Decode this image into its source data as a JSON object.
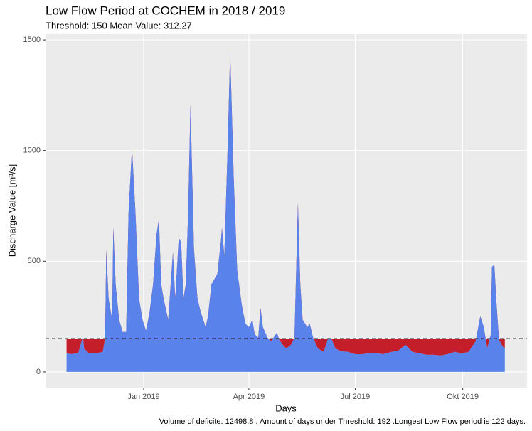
{
  "chart_data": {
    "type": "area",
    "title": "Low Flow Period at COCHEM in 2018 / 2019",
    "subtitle": "Threshold: 150  Mean Value: 312.27",
    "x_label": "Days",
    "y_label": "Discharge Value [m³/s]",
    "caption": "Volume of deficite:  12498.8 . Amount of days under Threshold: 192 .Longest Low Flow period is 122 days.",
    "threshold": 150,
    "color": "#5982ea",
    "deficit_color": "#c41e2a",
    "grid": true,
    "xlim": [
      -84,
      328
    ],
    "xticks": [
      {
        "value": 0,
        "label": "Jan 2019"
      },
      {
        "value": 90,
        "label": "Apr 2019"
      },
      {
        "value": 181,
        "label": "Jul 2019"
      },
      {
        "value": 273,
        "label": "Okt 2019"
      }
    ],
    "ylim": [
      -71,
      1526
    ],
    "yticks": [
      0,
      500,
      1000,
      1500
    ],
    "x": [
      -66,
      -62,
      -56,
      -52,
      -51,
      -47,
      -41,
      -35,
      -33,
      -32,
      -30,
      -27,
      -26,
      -24,
      -21,
      -18,
      -15,
      -13,
      -10,
      -7,
      -4,
      -1,
      2,
      5,
      8,
      11,
      13,
      15,
      17,
      21,
      25,
      27,
      30,
      32,
      34,
      36,
      38,
      40,
      43,
      46,
      49,
      53,
      55,
      58,
      63,
      66,
      67,
      69,
      72,
      74,
      77,
      80,
      84,
      87,
      90,
      93,
      95,
      98,
      100,
      102,
      106,
      109,
      114,
      116,
      119,
      122,
      126,
      129,
      132,
      134,
      136,
      140,
      142,
      145,
      149,
      154,
      158,
      161,
      164,
      169,
      175,
      181,
      187,
      193,
      199,
      205,
      212,
      218,
      224,
      230,
      236,
      242,
      248,
      254,
      260,
      266,
      272,
      278,
      284,
      288,
      291,
      294,
      297,
      298,
      300,
      302,
      304,
      307,
      309
    ],
    "values": [
      84,
      80,
      84,
      161,
      106,
      84,
      84,
      90,
      154,
      549,
      331,
      235,
      652,
      395,
      235,
      180,
      180,
      716,
      1012,
      716,
      331,
      235,
      186,
      267,
      395,
      620,
      691,
      395,
      331,
      235,
      540,
      331,
      604,
      588,
      331,
      395,
      716,
      1205,
      556,
      331,
      267,
      202,
      251,
      395,
      443,
      588,
      652,
      524,
      1038,
      1446,
      877,
      459,
      299,
      218,
      202,
      235,
      170,
      154,
      289,
      202,
      154,
      138,
      177,
      145,
      122,
      106,
      122,
      154,
      765,
      395,
      235,
      202,
      218,
      154,
      106,
      90,
      154,
      145,
      106,
      93,
      90,
      80,
      80,
      84,
      84,
      80,
      90,
      96,
      122,
      90,
      84,
      77,
      77,
      74,
      80,
      90,
      84,
      90,
      138,
      251,
      202,
      106,
      170,
      475,
      485,
      299,
      145,
      116,
      106
    ]
  }
}
